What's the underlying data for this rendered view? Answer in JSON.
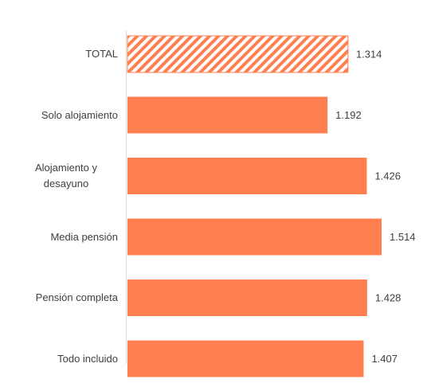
{
  "chart_data": {
    "type": "bar",
    "orientation": "horizontal",
    "categories": [
      "TOTAL",
      "Solo alojamiento",
      "Alojamiento y desayuno",
      "Media pensión",
      "Pensión completa",
      "Todo incluido"
    ],
    "values": [
      1314,
      1192,
      1426,
      1514,
      1428,
      1407
    ],
    "value_labels": [
      "1.314",
      "1.192",
      "1.426",
      "1.514",
      "1.428",
      "1.407"
    ],
    "color": "#ff7f50",
    "hatch": [
      true,
      false,
      false,
      false,
      false,
      false
    ]
  }
}
